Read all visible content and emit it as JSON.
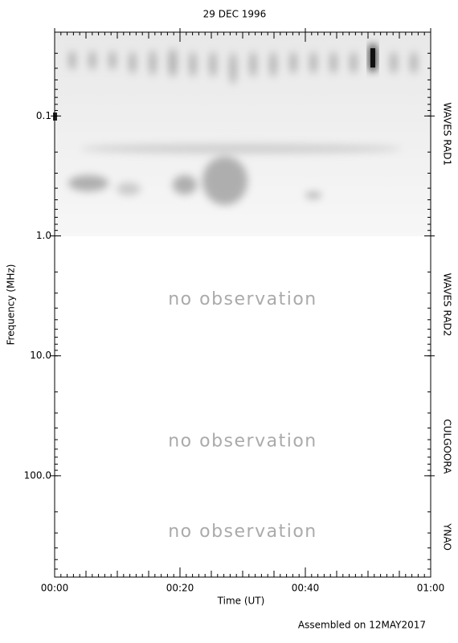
{
  "chart_data": {
    "type": "spectrogram",
    "title": "29 DEC 1996",
    "x_label": "Time (UT)",
    "y_label": "Frequency (MHz)",
    "xlim": [
      0,
      60
    ],
    "xticks": [
      {
        "value": 0,
        "label": "00:00"
      },
      {
        "value": 20,
        "label": "00:20"
      },
      {
        "value": 40,
        "label": "00:40"
      },
      {
        "value": 60,
        "label": "01:00"
      }
    ],
    "ylim": [
      0.02,
      700
    ],
    "log_y": true,
    "y_inverted": true,
    "yticks": [
      0.1,
      {
        "value": 1,
        "label": "1.0"
      },
      {
        "value": 10,
        "label": "10.0"
      },
      {
        "value": 100,
        "label": "100.0"
      }
    ],
    "bands": [
      {
        "name": "WAVES RAD1",
        "range": [
          0.02,
          1
        ]
      },
      {
        "name": "WAVES RAD2",
        "range": [
          1,
          14
        ],
        "note": "no observation"
      },
      {
        "name": "CULGOORA",
        "range": [
          18,
          180
        ],
        "note": "no observation"
      },
      {
        "name": "YNAO",
        "range": [
          150,
          700
        ],
        "note": "no observation"
      }
    ],
    "footer": "Assembled on 12MAY2017"
  }
}
